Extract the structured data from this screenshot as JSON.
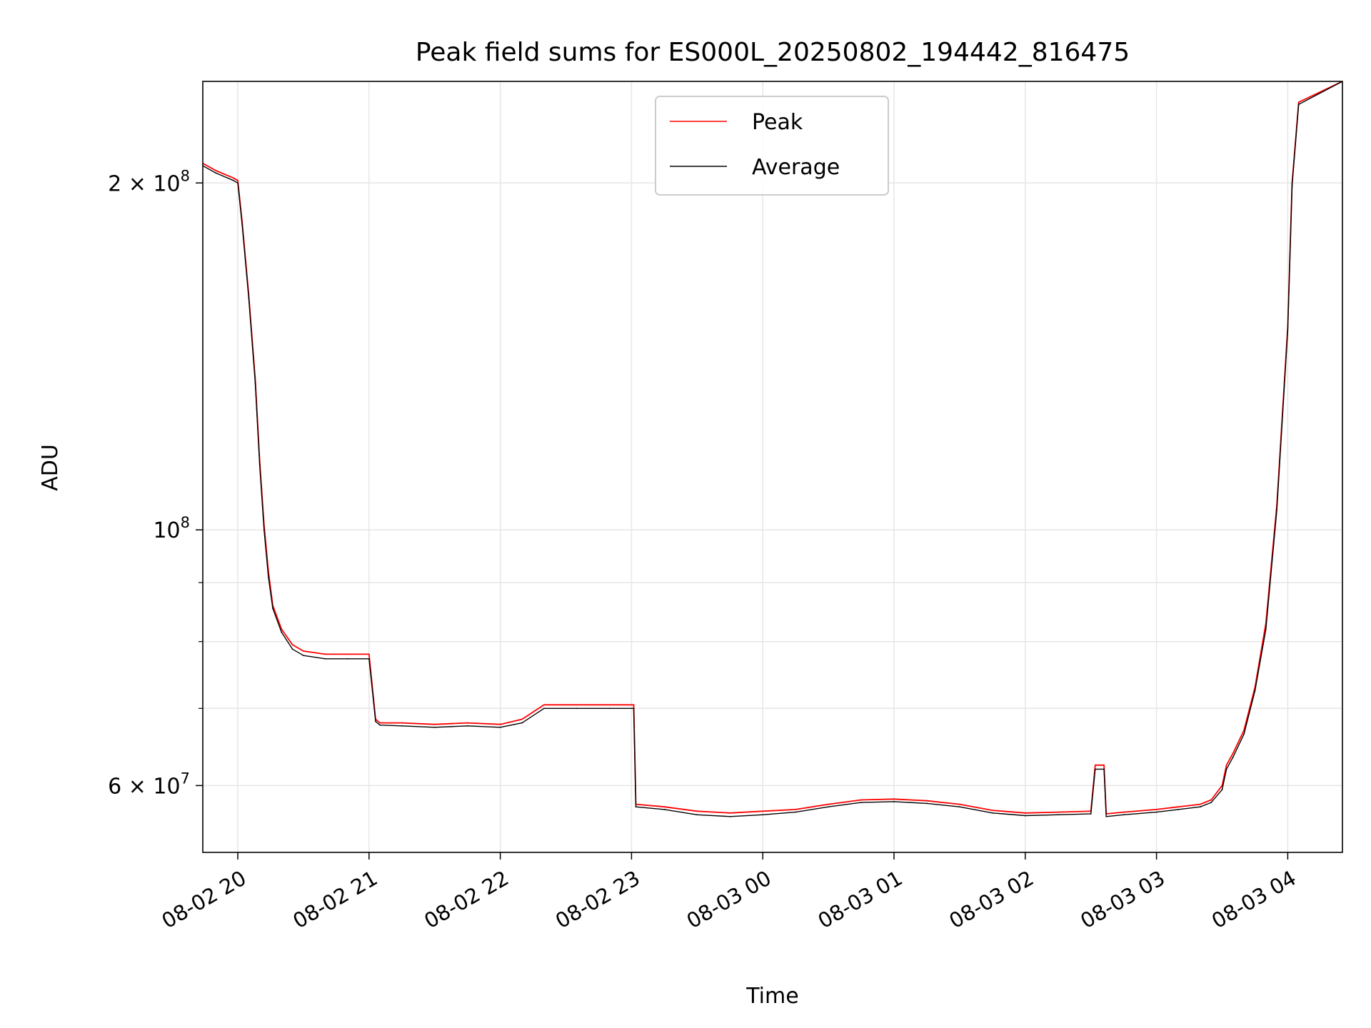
{
  "chart_data": {
    "type": "line",
    "title": "Peak field sums for ES000L_20250802_194442_816475",
    "xlabel": "Time",
    "ylabel": "ADU",
    "y_scale": "log",
    "ylim": [
      52500000,
      245000000
    ],
    "xlim": [
      "2025-08-02 19:44",
      "2025-08-03 04:25"
    ],
    "grid": true,
    "legend": "upper center",
    "x_ticks": [
      {
        "t": "2025-08-02 20:00",
        "label": "08-02 20"
      },
      {
        "t": "2025-08-02 21:00",
        "label": "08-02 21"
      },
      {
        "t": "2025-08-02 22:00",
        "label": "08-02 22"
      },
      {
        "t": "2025-08-02 23:00",
        "label": "08-02 23"
      },
      {
        "t": "2025-08-03 00:00",
        "label": "08-03 00"
      },
      {
        "t": "2025-08-03 01:00",
        "label": "08-03 01"
      },
      {
        "t": "2025-08-03 02:00",
        "label": "08-03 02"
      },
      {
        "t": "2025-08-03 03:00",
        "label": "08-03 03"
      },
      {
        "t": "2025-08-03 04:00",
        "label": "08-03 04"
      }
    ],
    "y_ticks_major": [
      {
        "v": 200000000,
        "label": "2 × 10⁸",
        "base": "2 × 10",
        "exp": "8"
      },
      {
        "v": 100000000,
        "label": "10⁸",
        "base": "10",
        "exp": "8"
      },
      {
        "v": 60000000,
        "label": "6 × 10⁷",
        "base": "6 × 10",
        "exp": "7"
      }
    ],
    "y_ticks_minor": [
      70000000,
      80000000,
      90000000
    ],
    "series": [
      {
        "name": "Peak",
        "color": "#ff0000",
        "x": [
          "2025-08-02 19:44",
          "2025-08-02 19:50",
          "2025-08-02 19:58",
          "2025-08-02 20:00",
          "2025-08-02 20:02",
          "2025-08-02 20:05",
          "2025-08-02 20:08",
          "2025-08-02 20:10",
          "2025-08-02 20:12",
          "2025-08-02 20:14",
          "2025-08-02 20:16",
          "2025-08-02 20:20",
          "2025-08-02 20:25",
          "2025-08-02 20:30",
          "2025-08-02 20:40",
          "2025-08-02 20:50",
          "2025-08-02 21:00",
          "2025-08-02 21:03",
          "2025-08-02 21:05",
          "2025-08-02 21:15",
          "2025-08-02 21:30",
          "2025-08-02 21:45",
          "2025-08-02 22:00",
          "2025-08-02 22:10",
          "2025-08-02 22:20",
          "2025-08-02 22:35",
          "2025-08-02 22:50",
          "2025-08-02 23:01",
          "2025-08-02 23:02",
          "2025-08-02 23:15",
          "2025-08-02 23:30",
          "2025-08-02 23:45",
          "2025-08-03 00:00",
          "2025-08-03 00:15",
          "2025-08-03 00:30",
          "2025-08-03 00:45",
          "2025-08-03 01:00",
          "2025-08-03 01:15",
          "2025-08-03 01:30",
          "2025-08-03 01:45",
          "2025-08-03 02:00",
          "2025-08-03 02:15",
          "2025-08-03 02:30",
          "2025-08-03 02:32",
          "2025-08-03 02:36",
          "2025-08-03 02:37",
          "2025-08-03 02:45",
          "2025-08-03 03:00",
          "2025-08-03 03:10",
          "2025-08-03 03:20",
          "2025-08-03 03:25",
          "2025-08-03 03:30",
          "2025-08-03 03:32",
          "2025-08-03 03:35",
          "2025-08-03 03:40",
          "2025-08-03 03:45",
          "2025-08-03 03:50",
          "2025-08-03 03:55",
          "2025-08-03 04:00",
          "2025-08-03 04:02",
          "2025-08-03 04:05",
          "2025-08-03 04:25"
        ],
        "values": [
          208000000,
          205000000,
          202000000,
          201000000,
          185000000,
          160000000,
          135000000,
          115000000,
          101000000,
          92000000,
          86000000,
          82000000,
          79500000,
          78500000,
          78000000,
          78000000,
          78000000,
          68500000,
          68000000,
          68000000,
          67800000,
          68000000,
          67800000,
          68500000,
          70500000,
          70500000,
          70500000,
          70500000,
          57800000,
          57500000,
          57000000,
          56800000,
          57000000,
          57200000,
          57800000,
          58300000,
          58400000,
          58200000,
          57800000,
          57100000,
          56800000,
          56900000,
          57000000,
          62500000,
          62500000,
          56700000,
          56900000,
          57200000,
          57500000,
          57800000,
          58300000,
          60000000,
          62500000,
          64000000,
          67000000,
          73000000,
          83000000,
          105000000,
          150000000,
          200000000,
          235000000,
          245000000
        ]
      },
      {
        "name": "Average",
        "color": "#000000",
        "x": [
          "2025-08-02 19:44",
          "2025-08-02 19:50",
          "2025-08-02 19:58",
          "2025-08-02 20:00",
          "2025-08-02 20:02",
          "2025-08-02 20:05",
          "2025-08-02 20:08",
          "2025-08-02 20:10",
          "2025-08-02 20:12",
          "2025-08-02 20:14",
          "2025-08-02 20:16",
          "2025-08-02 20:20",
          "2025-08-02 20:25",
          "2025-08-02 20:30",
          "2025-08-02 20:40",
          "2025-08-02 20:50",
          "2025-08-02 21:00",
          "2025-08-02 21:03",
          "2025-08-02 21:05",
          "2025-08-02 21:15",
          "2025-08-02 21:30",
          "2025-08-02 21:45",
          "2025-08-02 22:00",
          "2025-08-02 22:10",
          "2025-08-02 22:20",
          "2025-08-02 22:35",
          "2025-08-02 22:50",
          "2025-08-02 23:01",
          "2025-08-02 23:02",
          "2025-08-02 23:15",
          "2025-08-02 23:30",
          "2025-08-02 23:45",
          "2025-08-03 00:00",
          "2025-08-03 00:15",
          "2025-08-03 00:30",
          "2025-08-03 00:45",
          "2025-08-03 01:00",
          "2025-08-03 01:15",
          "2025-08-03 01:30",
          "2025-08-03 01:45",
          "2025-08-03 02:00",
          "2025-08-03 02:15",
          "2025-08-03 02:30",
          "2025-08-03 02:32",
          "2025-08-03 02:36",
          "2025-08-03 02:37",
          "2025-08-03 02:45",
          "2025-08-03 03:00",
          "2025-08-03 03:10",
          "2025-08-03 03:20",
          "2025-08-03 03:25",
          "2025-08-03 03:30",
          "2025-08-03 03:32",
          "2025-08-03 03:35",
          "2025-08-03 03:40",
          "2025-08-03 03:45",
          "2025-08-03 03:50",
          "2025-08-03 03:55",
          "2025-08-03 04:00",
          "2025-08-03 04:02",
          "2025-08-03 04:05",
          "2025-08-03 04:25"
        ],
        "values": [
          207000000,
          204000000,
          201000000,
          200000000,
          184000000,
          159000000,
          134000000,
          114000000,
          100000000,
          91000000,
          85500000,
          81500000,
          78800000,
          77800000,
          77300000,
          77300000,
          77300000,
          68200000,
          67700000,
          67600000,
          67400000,
          67600000,
          67400000,
          68000000,
          70000000,
          70000000,
          70000000,
          70000000,
          57500000,
          57200000,
          56600000,
          56400000,
          56600000,
          56900000,
          57500000,
          58000000,
          58100000,
          57900000,
          57500000,
          56800000,
          56500000,
          56600000,
          56700000,
          62000000,
          62000000,
          56400000,
          56600000,
          56900000,
          57200000,
          57500000,
          58000000,
          59500000,
          62000000,
          63500000,
          66500000,
          72500000,
          82000000,
          104000000,
          149000000,
          199000000,
          234000000,
          245000000
        ]
      }
    ]
  }
}
